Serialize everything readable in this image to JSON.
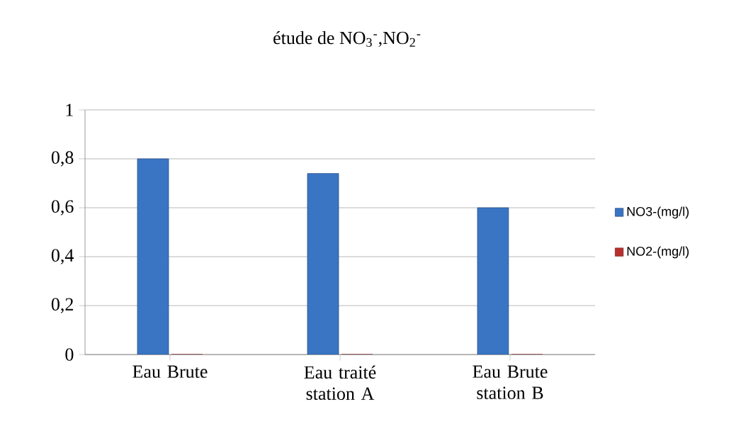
{
  "chart_data": {
    "type": "bar",
    "title": "étude de NO$_{3}$$^{-}$,NO$_{2}$$^{-}$",
    "categories": [
      "Eau Brute",
      "Eau traité station A",
      "Eau Brute station B"
    ],
    "series": [
      {
        "name": "NO3-(mg/l)",
        "color": "#3a75c4",
        "values": [
          0.8,
          0.74,
          0.6
        ]
      },
      {
        "name": "NO2-(mg/l)",
        "color": "#b8312f",
        "values": [
          0,
          0,
          0
        ]
      }
    ],
    "ylim": [
      0,
      1
    ],
    "yticks": [
      {
        "value": 0,
        "label": "0"
      },
      {
        "value": 0.2,
        "label": "0,2"
      },
      {
        "value": 0.4,
        "label": "0,4"
      },
      {
        "value": 0.6,
        "label": "0,6"
      },
      {
        "value": 0.8,
        "label": "0,8"
      },
      {
        "value": 1,
        "label": "1"
      }
    ],
    "grid": "y",
    "legend": "right"
  }
}
